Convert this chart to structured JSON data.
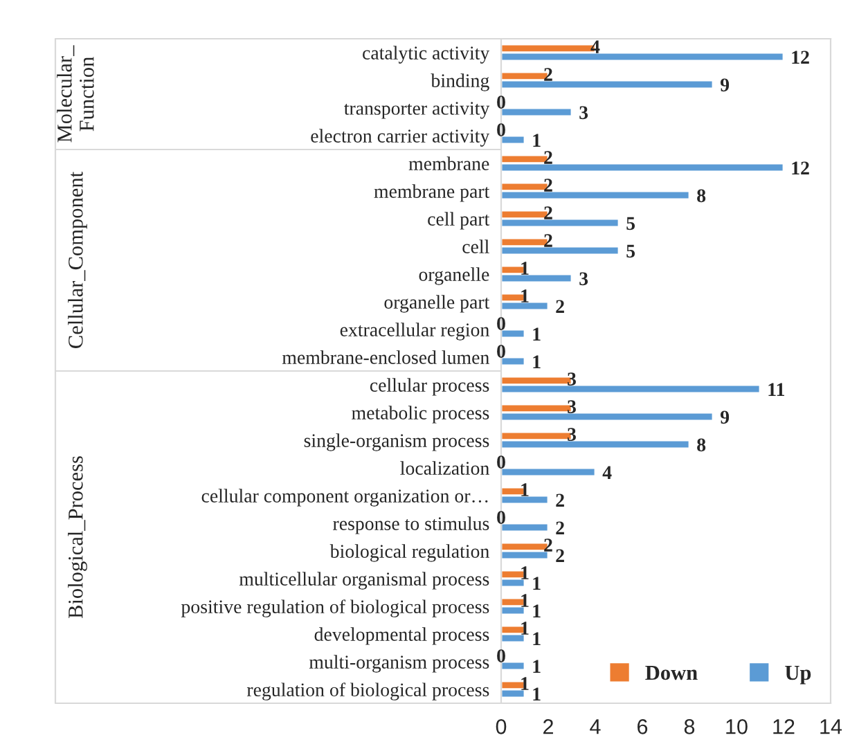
{
  "chart_data": {
    "type": "bar",
    "orientation": "horizontal",
    "categories": [
      "catalytic activity",
      "binding",
      "transporter activity",
      "electron carrier activity",
      "membrane",
      "membrane part",
      "cell part",
      "cell",
      "organelle",
      "organelle part",
      "extracellular region",
      "membrane-enclosed lumen",
      "cellular process",
      "metabolic process",
      "single-organism process",
      "localization",
      "cellular component organization or…",
      "response to stimulus",
      "biological regulation",
      "multicellular organismal process",
      "positive regulation of biological process",
      "developmental process",
      "multi-organism process",
      "regulation of biological process"
    ],
    "series": [
      {
        "name": "Down",
        "color": "#ed7d31",
        "values": [
          4,
          2,
          0,
          0,
          2,
          2,
          2,
          2,
          1,
          1,
          0,
          0,
          3,
          3,
          3,
          0,
          1,
          0,
          2,
          1,
          1,
          1,
          0,
          1
        ]
      },
      {
        "name": "Up",
        "color": "#5b9bd5",
        "values": [
          12,
          9,
          3,
          1,
          12,
          8,
          5,
          5,
          3,
          2,
          1,
          1,
          11,
          9,
          8,
          4,
          2,
          2,
          2,
          1,
          1,
          1,
          1,
          1
        ]
      }
    ],
    "xlim": [
      0,
      14
    ],
    "xticks": [
      0,
      2,
      4,
      6,
      8,
      10,
      12,
      14
    ],
    "data_labels": true,
    "legend": "bottom right",
    "grid": false,
    "annotations": [
      "Molecular_ Function",
      "Cellular_Component",
      "Biological_Process"
    ]
  }
}
